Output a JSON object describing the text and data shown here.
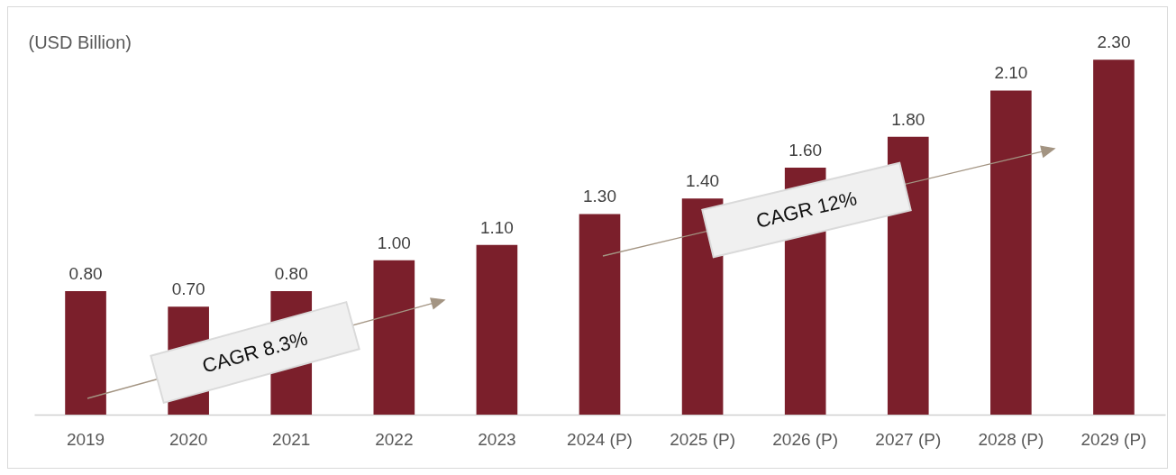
{
  "chart_data": {
    "type": "bar",
    "ylabel": "(USD Billion)",
    "categories": [
      "2019",
      "2020",
      "2021",
      "2022",
      "2023",
      "2024 (P)",
      "2025 (P)",
      "2026 (P)",
      "2027 (P)",
      "2028 (P)",
      "2029 (P)"
    ],
    "values": [
      0.8,
      0.7,
      0.8,
      1.0,
      1.1,
      1.3,
      1.4,
      1.6,
      1.8,
      2.1,
      2.3
    ],
    "value_labels": [
      "0.80",
      "0.70",
      "0.80",
      "1.00",
      "1.10",
      "1.30",
      "1.40",
      "1.60",
      "1.80",
      "2.10",
      "2.30"
    ],
    "color": "#7b1f2b",
    "annotations": [
      "CAGR 8.3%",
      "CAGR 12%"
    ]
  }
}
